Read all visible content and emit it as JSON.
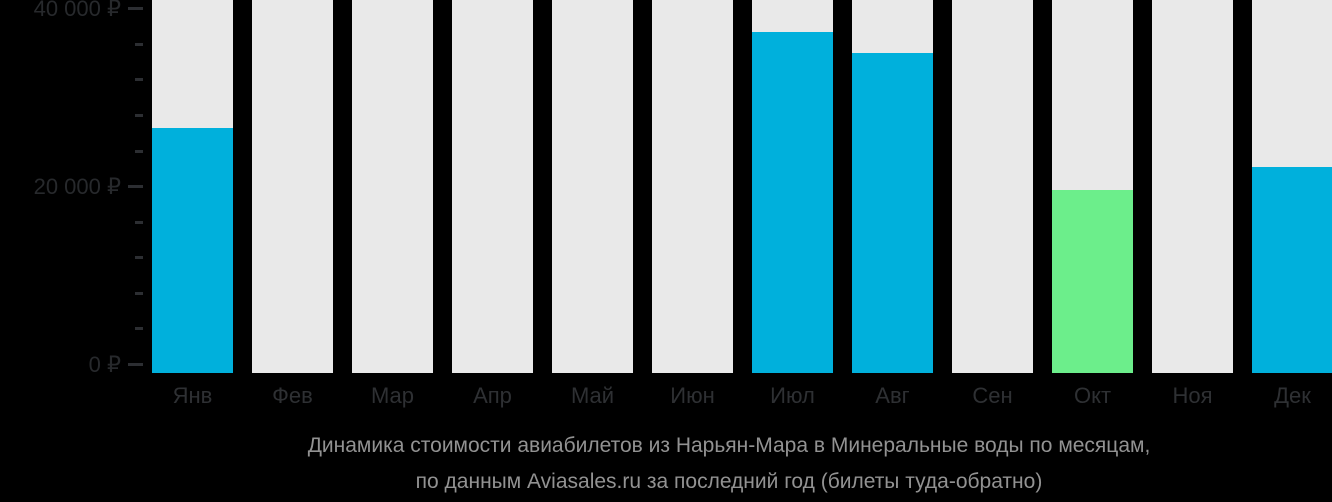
{
  "page": {
    "background": "#000000"
  },
  "chart_data": {
    "type": "bar",
    "title": "Динамика стоимости авиабилетов из Нарьян-Мара в Минеральные воды по месяцам,",
    "subtitle": "по данным Aviasales.ru за последний год (билеты туда-обратно)",
    "currency": "₽",
    "categories": [
      "Янв",
      "Фев",
      "Мар",
      "Апр",
      "Май",
      "Июн",
      "Июл",
      "Авг",
      "Сен",
      "Окт",
      "Ноя",
      "Дек"
    ],
    "values": [
      26500,
      null,
      null,
      null,
      null,
      null,
      37300,
      35000,
      null,
      19600,
      null,
      22200
    ],
    "min_value_index": 9,
    "xlabel": "",
    "ylabel": "",
    "ylim": [
      0,
      40000
    ],
    "grid": "off",
    "legend": "none",
    "y_axis": {
      "major_ticks": [
        {
          "label": "40 000 ₽",
          "value": 40000
        },
        {
          "label": "20 000 ₽",
          "value": 20000
        },
        {
          "label": "0 ₽",
          "value": 0
        }
      ],
      "minor_tick_values": [
        36000,
        32000,
        28000,
        24000,
        16000,
        12000,
        8000,
        4000
      ]
    },
    "colors": {
      "bar_default": "#00B0DC",
      "bar_min": "#6CEE8B",
      "column_background": "#E9E9E9",
      "axis_text": "#27292C",
      "month_text": "#2E3033",
      "caption_text": "#929292",
      "background": "#000000"
    }
  }
}
